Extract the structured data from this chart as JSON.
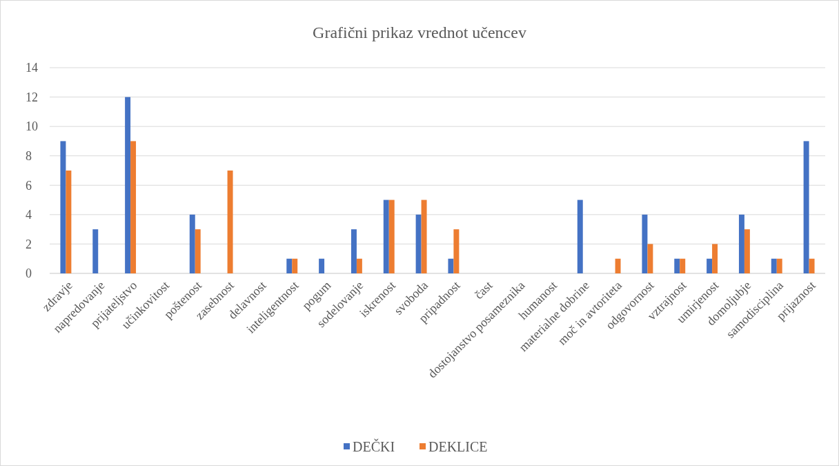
{
  "chart_data": {
    "type": "bar",
    "title": "Grafični prikaz vrednot učencev",
    "categories": [
      "zdravje",
      "napredovanje",
      "prijateljstvo",
      "učinkovitost",
      "poštenost",
      "zasebnost",
      "delavnost",
      "inteligentnost",
      "pogum",
      "sodelovanje",
      "iskrenost",
      "svoboda",
      "pripadnost",
      "čast",
      "dostojanstvo posameznika",
      "humanost",
      "materialne dobrine",
      "moč in avtoriteta",
      "odgovornost",
      "vztrajnost",
      "umirjenost",
      "domoljubje",
      "samodisciplina",
      "prijaznost"
    ],
    "series": [
      {
        "name": "DEČKI",
        "color": "#4472c4",
        "values": [
          9,
          3,
          12,
          null,
          4,
          null,
          null,
          1,
          1,
          3,
          5,
          4,
          1,
          null,
          null,
          null,
          5,
          null,
          4,
          1,
          1,
          4,
          1,
          9
        ]
      },
      {
        "name": "DEKLICE",
        "color": "#ed7d31",
        "values": [
          7,
          null,
          9,
          null,
          3,
          7,
          null,
          1,
          null,
          1,
          5,
          5,
          3,
          null,
          null,
          null,
          null,
          1,
          2,
          1,
          2,
          3,
          1,
          1
        ]
      }
    ],
    "ylim": [
      0,
      14
    ],
    "yticks": [
      0,
      2,
      4,
      6,
      8,
      10,
      12,
      14
    ],
    "grid": "y",
    "legend": "bottom"
  }
}
